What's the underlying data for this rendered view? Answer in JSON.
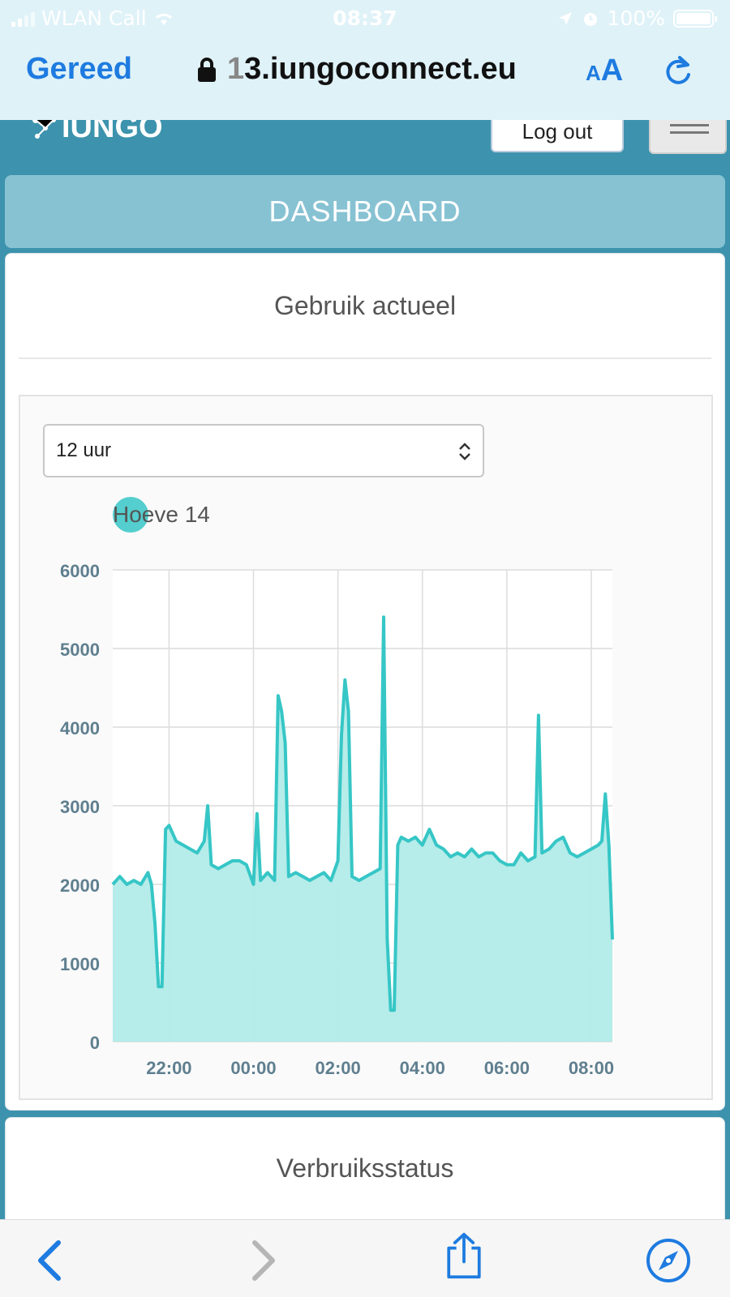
{
  "status_bar": {
    "carrier": "WLAN Call",
    "time": "08:37",
    "battery": "100%"
  },
  "browser": {
    "done_label": "Gereed",
    "url_first_char": "1",
    "url_rest": "3.iungoconnect.eu",
    "text_size_small": "A",
    "text_size_big": "A"
  },
  "header": {
    "logo_text": "IUNGO",
    "logout_label": "Log out"
  },
  "page": {
    "banner_title": "DASHBOARD",
    "usage_card_title": "Gebruik actueel",
    "range_select_value": "12 uur",
    "status_card_title": "Verbruiksstatus"
  },
  "colors": {
    "accent": "#3d93ad",
    "banner": "#87c2d3",
    "series_line": "#36c6c6",
    "series_fill": "#b2ebe8",
    "browser_blue": "#1e7be0"
  },
  "chart_data": {
    "type": "area",
    "series": [
      {
        "name": "Hoeve 14",
        "x": [
          "20:40",
          "20:50",
          "21:00",
          "21:10",
          "21:20",
          "21:30",
          "21:35",
          "21:40",
          "21:45",
          "21:50",
          "21:55",
          "22:00",
          "22:10",
          "22:20",
          "22:30",
          "22:40",
          "22:50",
          "22:55",
          "23:00",
          "23:10",
          "23:20",
          "23:30",
          "23:40",
          "23:50",
          "00:00",
          "00:05",
          "00:10",
          "00:20",
          "00:30",
          "00:35",
          "00:40",
          "00:45",
          "00:50",
          "01:00",
          "01:10",
          "01:20",
          "01:30",
          "01:40",
          "01:50",
          "02:00",
          "02:05",
          "02:10",
          "02:15",
          "02:20",
          "02:30",
          "02:40",
          "02:50",
          "03:00",
          "03:05",
          "03:10",
          "03:15",
          "03:20",
          "03:25",
          "03:30",
          "03:40",
          "03:50",
          "04:00",
          "04:10",
          "04:20",
          "04:30",
          "04:40",
          "04:50",
          "05:00",
          "05:10",
          "05:20",
          "05:30",
          "05:40",
          "05:50",
          "06:00",
          "06:10",
          "06:20",
          "06:30",
          "06:40",
          "06:45",
          "06:50",
          "07:00",
          "07:10",
          "07:20",
          "07:30",
          "07:40",
          "07:50",
          "08:00",
          "08:10",
          "08:15",
          "08:20",
          "08:25",
          "08:30"
        ],
        "y": [
          2000,
          2100,
          2000,
          2050,
          2000,
          2150,
          2000,
          1500,
          700,
          700,
          2700,
          2750,
          2550,
          2500,
          2450,
          2400,
          2550,
          3000,
          2250,
          2200,
          2250,
          2300,
          2300,
          2250,
          2000,
          2900,
          2050,
          2150,
          2050,
          4400,
          4200,
          3800,
          2100,
          2150,
          2100,
          2050,
          2100,
          2150,
          2050,
          2300,
          3900,
          4600,
          4200,
          2100,
          2050,
          2100,
          2150,
          2200,
          5400,
          1300,
          400,
          400,
          2500,
          2600,
          2550,
          2600,
          2500,
          2700,
          2500,
          2450,
          2350,
          2400,
          2350,
          2450,
          2350,
          2400,
          2400,
          2300,
          2250,
          2250,
          2400,
          2300,
          2350,
          4150,
          2400,
          2450,
          2550,
          2600,
          2400,
          2350,
          2400,
          2450,
          2500,
          2550,
          3150,
          2500,
          1300
        ]
      }
    ],
    "xticks": [
      "22:00",
      "00:00",
      "02:00",
      "04:00",
      "06:00",
      "08:00"
    ],
    "yticks": [
      0,
      1000,
      2000,
      3000,
      4000,
      5000,
      6000
    ],
    "ylim": [
      0,
      6000
    ],
    "grid": true,
    "legend": "top-left",
    "xlabel": "",
    "ylabel": ""
  }
}
